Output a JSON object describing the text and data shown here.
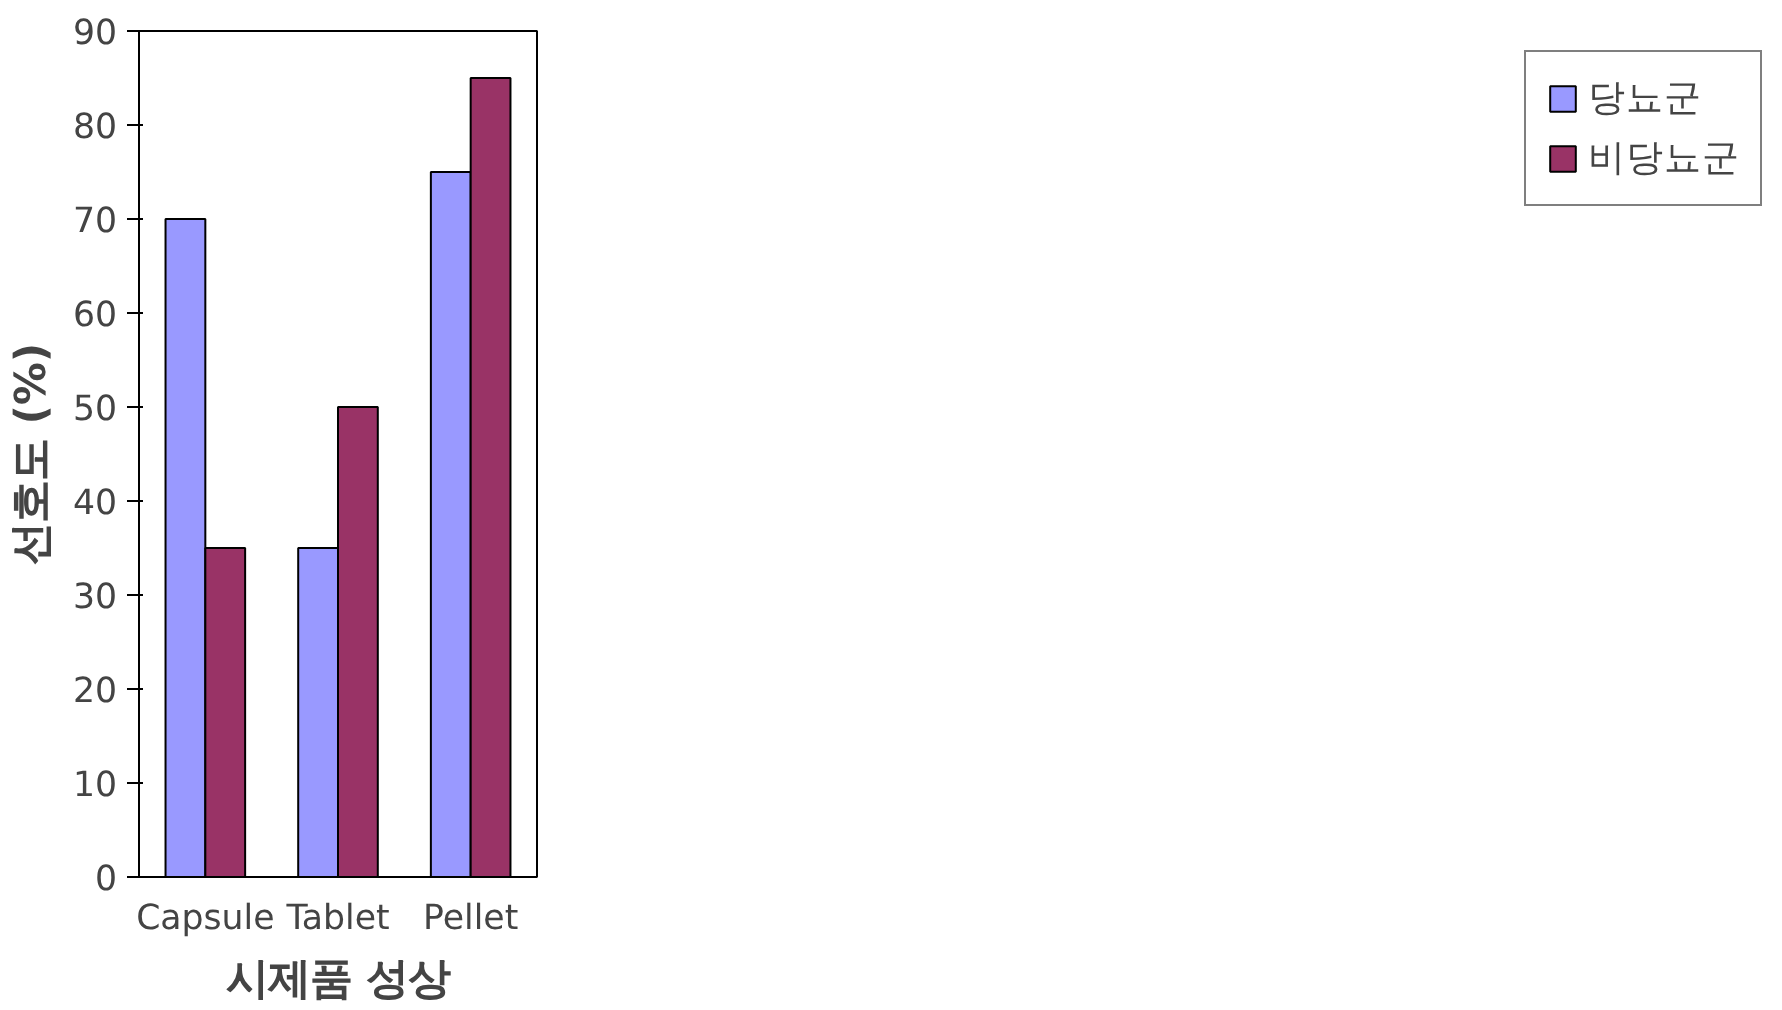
{
  "chart_data": {
    "type": "bar",
    "xlabel": "시제품 성상",
    "ylabel": "선호도 (%)",
    "categories": [
      "Capsule",
      "Tablet",
      "Pellet"
    ],
    "series": [
      {
        "name": "당뇨군",
        "color": "#9999ff",
        "values": [
          70,
          35,
          75
        ]
      },
      {
        "name": "비당뇨군",
        "color": "#993366",
        "values": [
          35,
          50,
          85
        ]
      }
    ],
    "ylim": [
      0,
      90
    ],
    "yticks": [
      0,
      10,
      20,
      30,
      40,
      50,
      60,
      70,
      80,
      90
    ],
    "legend": "right"
  }
}
